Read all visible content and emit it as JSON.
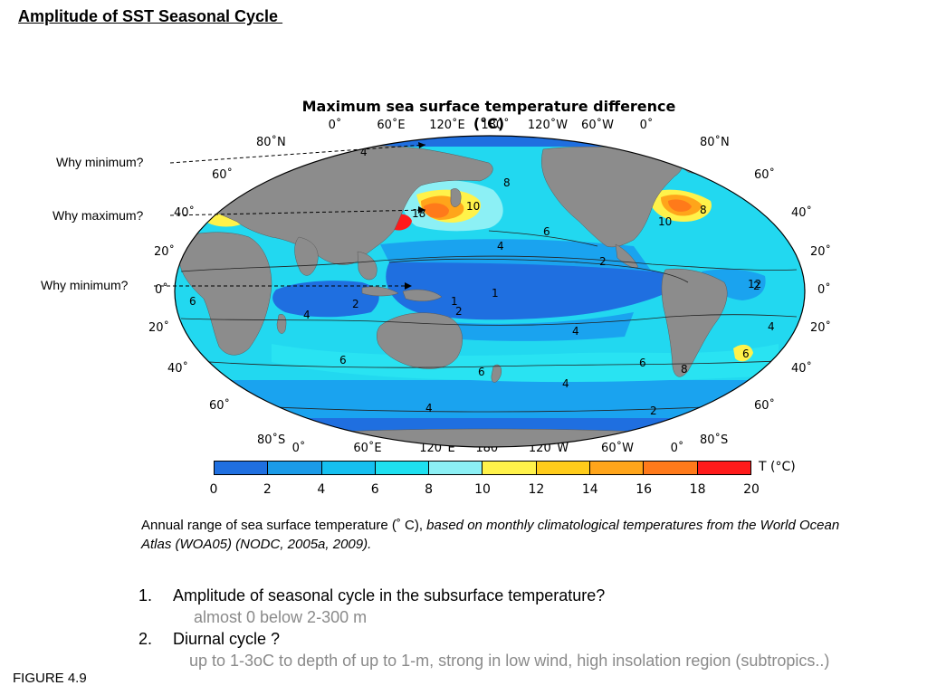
{
  "slide": {
    "title": "Amplitude of SST Seasonal Cycle ",
    "figure_label": "FIGURE 4.9"
  },
  "map": {
    "title": "Maximum sea surface temperature difference (°C)",
    "lon_labels_top": [
      "0˚",
      "60˚E",
      "120˚E",
      "180˚",
      "120˚W",
      "60˚W",
      "0˚"
    ],
    "lon_labels_bottom": [
      "0˚",
      "60˚E",
      "120˚E",
      "180˚",
      "120˚W",
      "60˚W",
      "0˚"
    ],
    "lat_labels_left": [
      "80˚N",
      "60˚",
      "40˚",
      "20˚",
      "0˚",
      "20˚",
      "40˚",
      "60˚",
      "80˚S"
    ],
    "lat_labels_right": [
      "80˚N",
      "60˚",
      "40˚",
      "20˚",
      "0˚",
      "20˚",
      "40˚",
      "60˚",
      "80˚S"
    ],
    "contour_labels": [
      "4",
      "8",
      "10",
      "6",
      "4",
      "2",
      "18",
      "10",
      "8",
      "6",
      "2",
      "1",
      "2",
      "1",
      "2",
      "6",
      "4",
      "4",
      "4",
      "6",
      "6",
      "4",
      "8",
      "6",
      "4",
      "2",
      "4",
      "12"
    ],
    "colors": {
      "ocean_0_2": "#1f6fe0",
      "ocean_2_4": "#1aa3ef",
      "ocean_4_6": "#22d8f0",
      "ocean_6_8": "#29e3f2",
      "ocean_8_10": "#8cf0f5",
      "land": "#8c8c8c"
    }
  },
  "colorbar": {
    "unit": "T (°C)",
    "ticks": [
      "0",
      "2",
      "4",
      "6",
      "8",
      "10",
      "12",
      "14",
      "16",
      "18",
      "20"
    ],
    "colors": [
      "#1f6fe0",
      "#1a9be8",
      "#15b6f0",
      "#10d6f2",
      "#1ee6f0",
      "#8cf0f5",
      "#fff24a",
      "#ffcc1a",
      "#ffa51a",
      "#ff7a1a",
      "#ff1a1a"
    ]
  },
  "callouts": [
    {
      "text": "Why minimum?"
    },
    {
      "text": "Why maximum?"
    },
    {
      "text": "Why minimum?"
    }
  ],
  "caption": {
    "plain": "Annual range of sea surface temperature (˚ C), ",
    "italic": "based on monthly climatological temperatures from the World Ocean Atlas (WOA05) (NODC, 2005a, 2009)."
  },
  "questions": [
    {
      "number": "1.",
      "text": "Amplitude of seasonal cycle in the subsurface temperature?",
      "answer": "almost 0 below 2-300 m"
    },
    {
      "number": "2.",
      "text": "Diurnal cycle ?",
      "answer": "up to 1-3oC to depth of up to 1-m, strong in low wind, high insolation region (subtropics..)"
    }
  ]
}
